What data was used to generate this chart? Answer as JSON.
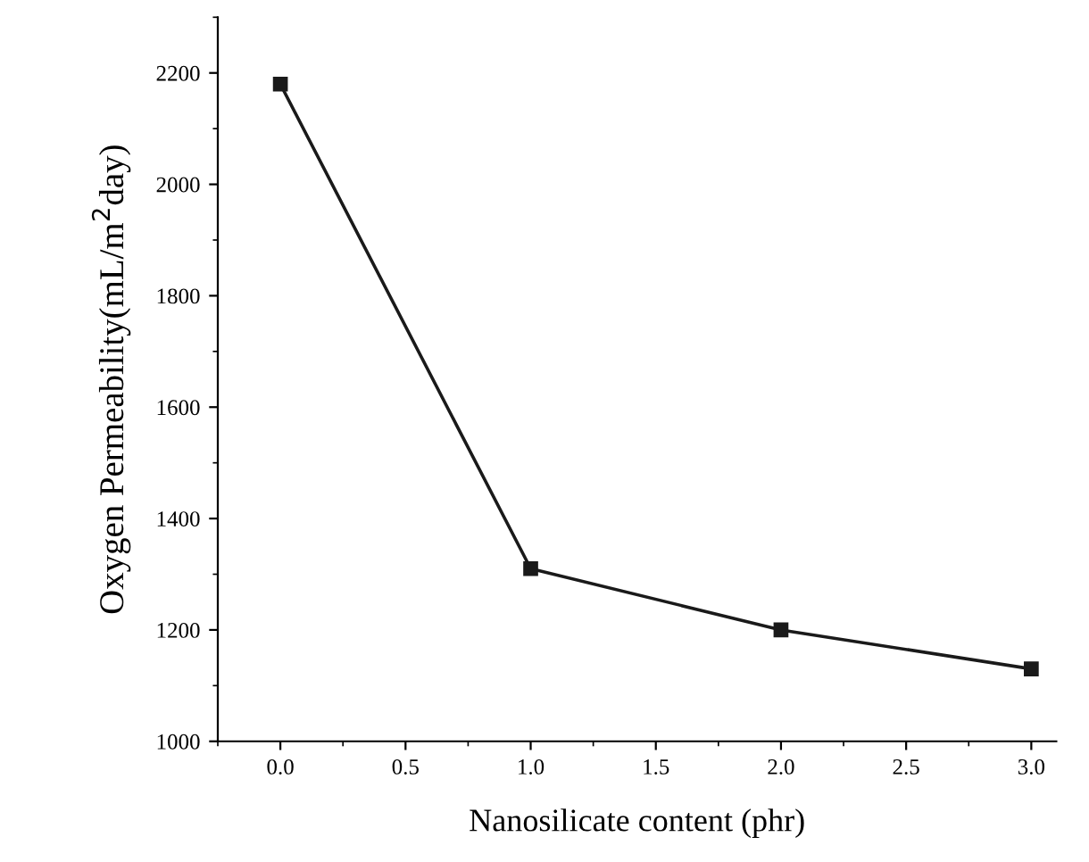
{
  "chart_data": {
    "type": "line",
    "xlabel": "Nanosilicate content (phr)",
    "ylabel": "Oxygen Permeability(mL/m$^{2}$day)",
    "x": [
      0.0,
      1.0,
      2.0,
      3.0
    ],
    "series": [
      {
        "color": "#1a1a1a",
        "values": [
          2180,
          1310,
          1200,
          1130
        ]
      }
    ],
    "xlim": [
      -0.25,
      3.1
    ],
    "ylim": [
      1000,
      2300
    ],
    "xticks": [
      {
        "value": 0,
        "label": "0.0"
      },
      0.5,
      {
        "value": 1,
        "label": "1.0"
      },
      1.5,
      {
        "value": 2,
        "label": "2.0"
      },
      2.5,
      {
        "value": 3,
        "label": "3.0"
      }
    ],
    "yticks": [
      1000,
      1200,
      1400,
      1600,
      1800,
      2000,
      2200
    ],
    "marker": "square",
    "line_style": "solid",
    "grid": false,
    "legend": false
  }
}
